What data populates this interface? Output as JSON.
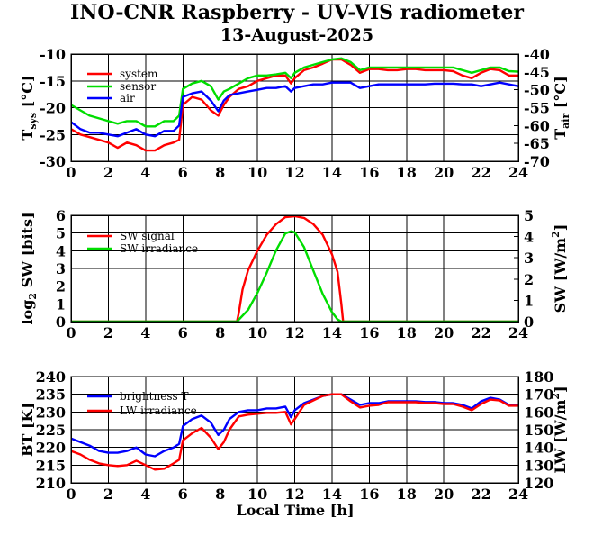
{
  "title": "INO-CNR Raspberry - UV-VIS radiometer",
  "subtitle": "13-August-2025",
  "xlabel": "Local Time [h]",
  "colors": {
    "red": "#ff0000",
    "green": "#00dd00",
    "blue": "#0000ff"
  },
  "chart_data": [
    {
      "type": "line",
      "x_ticks": [
        "0",
        "2",
        "4",
        "6",
        "8",
        "10",
        "12",
        "14",
        "16",
        "18",
        "20",
        "22",
        "24"
      ],
      "xlim": [
        0,
        24
      ],
      "ylabel_left": {
        "main": "T",
        "sub": "sys",
        "unit": " [°C]"
      },
      "ylabel_right": {
        "main": "T",
        "sub": "air",
        "unit": " [°C]"
      },
      "ylim_left": [
        -30,
        -10
      ],
      "ylim_right": [
        -70,
        -40
      ],
      "yticks_left": [
        "-30",
        "-25",
        "-20",
        "-15",
        "-10"
      ],
      "yticks_right": [
        "-70",
        "-65",
        "-60",
        "-55",
        "-50",
        "-45",
        "-40"
      ],
      "grid": true,
      "legend_position": "top-left",
      "series": [
        {
          "name": "system",
          "color": "#ff0000",
          "axis": "left",
          "x": [
            0,
            0.5,
            1,
            1.5,
            2,
            2.5,
            3,
            3.5,
            4,
            4.5,
            5,
            5.5,
            5.8,
            6,
            6.5,
            7,
            7.5,
            7.9,
            8.2,
            8.5,
            9,
            9.5,
            10,
            10.5,
            11,
            11.5,
            11.8,
            12,
            12.5,
            13,
            13.5,
            14,
            14.5,
            15,
            15.5,
            16,
            16.5,
            17,
            17.5,
            18,
            18.5,
            19,
            19.5,
            20,
            20.5,
            21,
            21.5,
            22,
            22.5,
            23,
            23.5,
            24
          ],
          "y": [
            -24,
            -25,
            -25.5,
            -26,
            -26.5,
            -27.5,
            -26.5,
            -27,
            -28,
            -28,
            -27,
            -26.5,
            -26,
            -19.5,
            -18,
            -18.5,
            -20.5,
            -21.5,
            -19.5,
            -18,
            -16.5,
            -16,
            -15,
            -14.5,
            -14,
            -14,
            -15.5,
            -14.5,
            -13,
            -12.5,
            -11.8,
            -11,
            -11,
            -12,
            -13.5,
            -12.8,
            -12.8,
            -13,
            -13,
            -12.8,
            -12.8,
            -13,
            -13,
            -13,
            -13.2,
            -14,
            -14.5,
            -13.5,
            -12.8,
            -13,
            -14,
            -14
          ]
        },
        {
          "name": "sensor",
          "color": "#00dd00",
          "axis": "left",
          "x": [
            0,
            0.5,
            1,
            1.5,
            2,
            2.5,
            3,
            3.5,
            4,
            4.5,
            5,
            5.5,
            5.8,
            6,
            6.5,
            7,
            7.5,
            7.9,
            8.2,
            8.5,
            9,
            9.5,
            10,
            10.5,
            11,
            11.5,
            11.8,
            12,
            12.5,
            13,
            13.5,
            14,
            14.5,
            15,
            15.5,
            16,
            16.5,
            17,
            17.5,
            18,
            18.5,
            19,
            19.5,
            20,
            20.5,
            21,
            21.5,
            22,
            22.5,
            23,
            23.5,
            24
          ],
          "y": [
            -19.5,
            -20.5,
            -21.5,
            -22,
            -22.5,
            -23,
            -22.5,
            -22.5,
            -23.5,
            -23.5,
            -22.5,
            -22.5,
            -21.5,
            -16.5,
            -15.5,
            -15,
            -16,
            -18.5,
            -17,
            -16.5,
            -15.5,
            -14.5,
            -14,
            -14,
            -13.8,
            -13.5,
            -14.5,
            -13.5,
            -12.5,
            -12,
            -11.5,
            -11,
            -10.8,
            -11.5,
            -13,
            -12.5,
            -12.5,
            -12.5,
            -12.5,
            -12.5,
            -12.5,
            -12.5,
            -12.5,
            -12.5,
            -12.5,
            -13,
            -13.5,
            -13,
            -12.5,
            -12.5,
            -13.2,
            -13.3
          ]
        },
        {
          "name": "air",
          "color": "#0000ff",
          "axis": "right",
          "x": [
            0,
            0.5,
            1,
            1.5,
            2,
            2.5,
            3,
            3.5,
            4,
            4.5,
            5,
            5.5,
            5.8,
            6,
            6.5,
            7,
            7.5,
            7.9,
            8.2,
            8.5,
            9,
            9.5,
            10,
            10.5,
            11,
            11.5,
            11.8,
            12,
            12.5,
            13,
            13.5,
            14,
            14.5,
            15,
            15.5,
            16,
            16.5,
            17,
            17.5,
            18,
            18.5,
            19,
            19.5,
            20,
            20.5,
            21,
            21.5,
            22,
            22.5,
            23,
            23.5,
            24
          ],
          "y": [
            -59,
            -61,
            -62,
            -62,
            -62.5,
            -63,
            -62,
            -61,
            -62.5,
            -63,
            -61.5,
            -61.5,
            -60,
            -52,
            -51,
            -50.5,
            -53,
            -56,
            -53,
            -51.5,
            -51,
            -50.5,
            -50,
            -49.5,
            -49.5,
            -49,
            -50.5,
            -49.5,
            -49,
            -48.5,
            -48.5,
            -48,
            -48,
            -48,
            -49.5,
            -49,
            -48.5,
            -48.5,
            -48.5,
            -48.5,
            -48.5,
            -48.5,
            -48.3,
            -48.3,
            -48.3,
            -48.5,
            -48.5,
            -49,
            -48.5,
            -48,
            -48.5,
            -49
          ]
        }
      ]
    },
    {
      "type": "line",
      "x_ticks": [
        "0",
        "2",
        "4",
        "6",
        "8",
        "10",
        "12",
        "14",
        "16",
        "18",
        "20",
        "22",
        "24"
      ],
      "xlim": [
        0,
        24
      ],
      "ylabel_left": {
        "main": "log",
        "sub": "2",
        "unit": " SW [bits]"
      },
      "ylabel_right": {
        "main": "SW [W/m",
        "sup": "2",
        "unit": "]"
      },
      "ylim_left": [
        0,
        6
      ],
      "ylim_right": [
        0,
        5
      ],
      "yticks_left": [
        "0",
        "1",
        "2",
        "3",
        "4",
        "5",
        "6"
      ],
      "yticks_right": [
        "0",
        "1",
        "2",
        "3",
        "4",
        "5"
      ],
      "grid": true,
      "legend_position": "top-left",
      "series": [
        {
          "name": "SW signal",
          "color": "#ff0000",
          "axis": "left",
          "x": [
            0,
            8.9,
            9.0,
            9.2,
            9.5,
            10,
            10.5,
            11,
            11.5,
            12,
            12.5,
            13,
            13.5,
            14,
            14.3,
            14.5,
            14.6,
            24
          ],
          "y": [
            0,
            0,
            0.5,
            1.8,
            2.9,
            4.0,
            4.9,
            5.5,
            5.9,
            5.95,
            5.85,
            5.5,
            4.9,
            3.8,
            2.8,
            1.0,
            0,
            0
          ]
        },
        {
          "name": "SW irradiance",
          "color": "#00dd00",
          "axis": "right",
          "x": [
            0,
            8.9,
            9.5,
            10,
            10.5,
            11,
            11.5,
            11.8,
            12,
            12.5,
            13,
            13.5,
            14,
            14.3,
            14.5,
            24
          ],
          "y": [
            0,
            0,
            0.55,
            1.35,
            2.3,
            3.35,
            4.15,
            4.25,
            4.2,
            3.5,
            2.4,
            1.3,
            0.45,
            0.1,
            0,
            0
          ]
        }
      ]
    },
    {
      "type": "line",
      "x_ticks": [
        "0",
        "2",
        "4",
        "6",
        "8",
        "10",
        "12",
        "14",
        "16",
        "18",
        "20",
        "22",
        "24"
      ],
      "xlim": [
        0,
        24
      ],
      "ylabel_left": {
        "main": "BT [K]"
      },
      "ylabel_right": {
        "main": "LW [W/m",
        "sup": "2",
        "unit": "]"
      },
      "ylim_left": [
        210,
        240
      ],
      "ylim_right": [
        120,
        180
      ],
      "yticks_left": [
        "210",
        "215",
        "220",
        "225",
        "230",
        "235",
        "240"
      ],
      "yticks_right": [
        "120",
        "130",
        "140",
        "150",
        "160",
        "170",
        "180"
      ],
      "grid": true,
      "legend_position": "top-left",
      "series": [
        {
          "name": "brightness T",
          "color": "#0000ff",
          "axis": "left",
          "x": [
            0,
            0.5,
            1,
            1.5,
            2,
            2.5,
            3,
            3.5,
            4,
            4.5,
            5,
            5.5,
            5.8,
            6,
            6.5,
            7,
            7.5,
            7.9,
            8.2,
            8.5,
            9,
            9.5,
            10,
            10.5,
            11,
            11.5,
            11.8,
            12,
            12.5,
            13,
            13.5,
            14,
            14.5,
            15,
            15.5,
            16,
            16.5,
            17,
            17.5,
            18,
            18.5,
            19,
            19.5,
            20,
            20.5,
            21,
            21.5,
            22,
            22.5,
            23,
            23.5,
            24
          ],
          "y": [
            222.5,
            221.5,
            220.5,
            219,
            218.5,
            218.5,
            219,
            220,
            218,
            217.5,
            219,
            220,
            221,
            226,
            228,
            229,
            227,
            223.5,
            225,
            228,
            230,
            230.5,
            230.5,
            231,
            231,
            231.5,
            228.5,
            230.5,
            232.5,
            233.5,
            234.5,
            235,
            235,
            233.5,
            232,
            232.5,
            232.5,
            233,
            233,
            233,
            233,
            232.8,
            232.8,
            232.5,
            232.5,
            232,
            231,
            233,
            234,
            233.5,
            232,
            232
          ]
        },
        {
          "name": "LW irradiance",
          "color": "#ff0000",
          "axis": "right",
          "x": [
            0,
            0.5,
            1,
            1.5,
            2,
            2.5,
            3,
            3.5,
            4,
            4.5,
            5,
            5.5,
            5.8,
            6,
            6.5,
            7,
            7.5,
            7.9,
            8.2,
            8.5,
            9,
            9.5,
            10,
            10.5,
            11,
            11.5,
            11.8,
            12,
            12.5,
            13,
            13.5,
            14,
            14.5,
            15,
            15.5,
            16,
            16.5,
            17,
            17.5,
            18,
            18.5,
            19,
            19.5,
            20,
            20.5,
            21,
            21.5,
            22,
            22.5,
            23,
            23.5,
            24
          ],
          "y": [
            138,
            136,
            133,
            131,
            130,
            129.5,
            130,
            132.5,
            130,
            127.5,
            128,
            131,
            133,
            144,
            148,
            151,
            145.5,
            139,
            143,
            150,
            157.5,
            158.5,
            159,
            159.5,
            159.5,
            160,
            153,
            156,
            164,
            166.5,
            169,
            170,
            170,
            166,
            162.5,
            163.5,
            164,
            165.5,
            165.5,
            165.5,
            165.5,
            165,
            165,
            164.5,
            164.5,
            163,
            161,
            164.5,
            167,
            166.5,
            163.5,
            163.5
          ]
        }
      ]
    }
  ]
}
